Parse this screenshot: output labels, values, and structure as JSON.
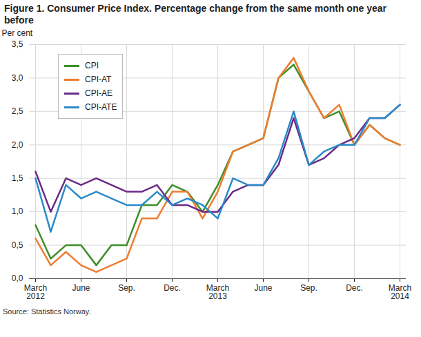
{
  "chart_data": {
    "type": "line",
    "title": "Figure 1. Consumer Price Index. Percentage change from the same month one year before",
    "y_label": "Per cent",
    "source": "Source: Statistics Norway.",
    "categories": [
      "March\n2012",
      null,
      null,
      "June",
      null,
      null,
      "Sep.",
      null,
      null,
      "Dec.",
      null,
      null,
      "March\n2013",
      null,
      null,
      "June",
      null,
      null,
      "Sep.",
      null,
      null,
      "Dec.",
      null,
      null,
      "March\n2014"
    ],
    "series": [
      {
        "name": "CPI",
        "color": "#3e8e2a",
        "values": [
          0.8,
          0.3,
          0.5,
          0.5,
          0.2,
          0.5,
          0.5,
          1.1,
          1.1,
          1.4,
          1.3,
          1.0,
          1.4,
          1.9,
          2.0,
          2.1,
          3.0,
          3.2,
          2.8,
          2.4,
          2.5,
          2.0,
          2.3,
          2.1,
          2.0
        ]
      },
      {
        "name": "CPI-AT",
        "color": "#ee7d31",
        "values": [
          0.6,
          0.2,
          0.4,
          0.2,
          0.1,
          0.2,
          0.3,
          0.9,
          0.9,
          1.3,
          1.3,
          0.9,
          1.3,
          1.9,
          2.0,
          2.1,
          3.0,
          3.3,
          2.8,
          2.4,
          2.6,
          2.0,
          2.3,
          2.1,
          2.0
        ]
      },
      {
        "name": "CPI-AE",
        "color": "#6b2a86",
        "values": [
          1.6,
          1.0,
          1.5,
          1.4,
          1.5,
          1.4,
          1.3,
          1.3,
          1.4,
          1.1,
          1.1,
          1.0,
          1.0,
          1.3,
          1.4,
          1.4,
          1.7,
          2.4,
          1.7,
          1.8,
          2.0,
          2.1,
          2.4,
          2.4,
          2.6
        ]
      },
      {
        "name": "CPI-ATE",
        "color": "#2a8ac8",
        "values": [
          1.5,
          0.7,
          1.4,
          1.2,
          1.3,
          1.2,
          1.1,
          1.1,
          1.3,
          1.1,
          1.2,
          1.1,
          0.9,
          1.5,
          1.4,
          1.4,
          1.8,
          2.5,
          1.7,
          1.9,
          2.0,
          2.0,
          2.4,
          2.4,
          2.6
        ]
      }
    ],
    "ylim": [
      0,
      3.5
    ],
    "yticks": [
      {
        "value": 0,
        "label": "0,0"
      },
      {
        "value": 0.5,
        "label": "0,5"
      },
      {
        "value": 1,
        "label": "1,0"
      },
      {
        "value": 1.5,
        "label": "1,5"
      },
      {
        "value": 2,
        "label": "2,0"
      },
      {
        "value": 2.5,
        "label": "2,5"
      },
      {
        "value": 3,
        "label": "3,0"
      },
      {
        "value": 3.5,
        "label": "3,5"
      }
    ],
    "grid": true,
    "legend": "top-left"
  }
}
